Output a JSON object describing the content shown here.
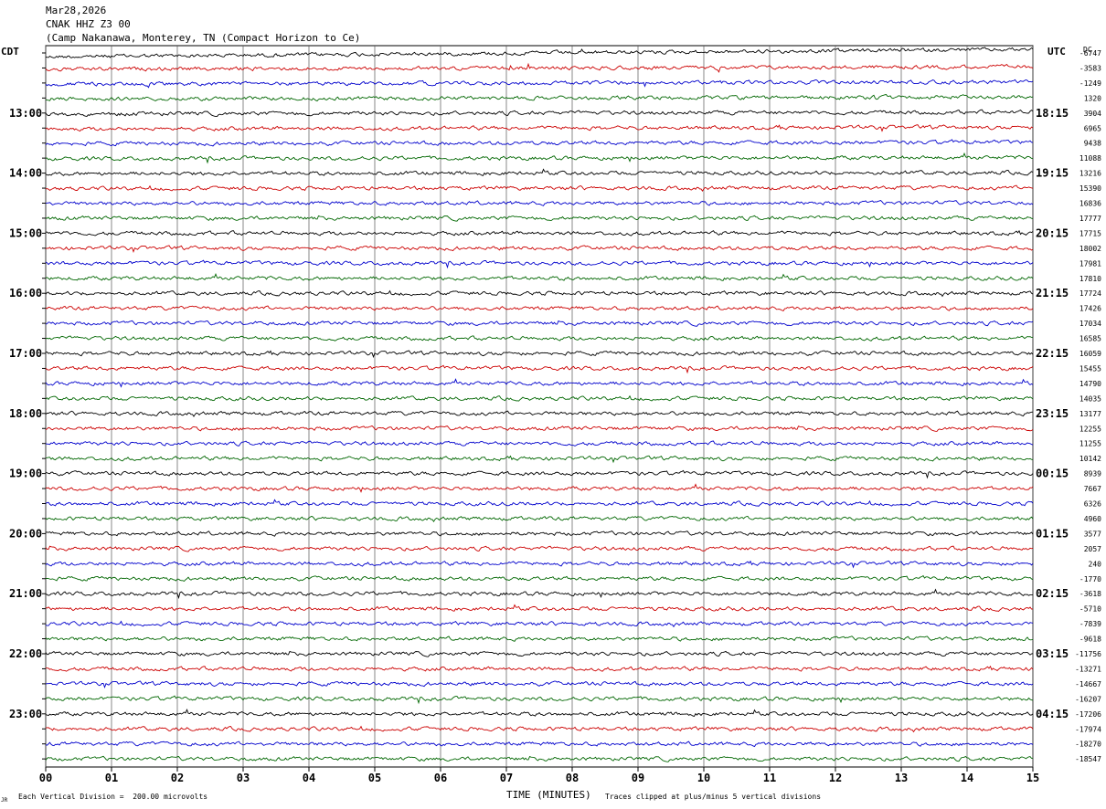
{
  "header": {
    "date": "Mar28,2026",
    "station": "CNAK HHZ Z3 00",
    "location": "(Camp Nakanawa, Monterey, TN (Compact Horizon to Ce)"
  },
  "left_zone": "CDT",
  "right_zone": "UTC",
  "dc_label": "DC",
  "footer": {
    "xlabel": "TIME (MINUTES)",
    "scale_note": "Each Vertical Division =  200.00 microvolts",
    "clip_note": "Traces clipped at plus/minus 5 vertical divisions",
    "corner_mark": "JR"
  },
  "colors": {
    "trace_cycle": [
      "#000000",
      "#cc0000",
      "#0000cc",
      "#006600"
    ],
    "grid": "#000000"
  },
  "chart_data": {
    "type": "line",
    "x_ticks": [
      "00",
      "01",
      "02",
      "03",
      "04",
      "05",
      "06",
      "07",
      "08",
      "09",
      "10",
      "11",
      "12",
      "13",
      "14",
      "15"
    ],
    "xlim": [
      0,
      15
    ],
    "left_time_labels": [
      "13:00",
      "14:00",
      "15:00",
      "16:00",
      "17:00",
      "18:00",
      "19:00",
      "20:00",
      "21:00",
      "22:00",
      "23:00"
    ],
    "right_time_labels": [
      "18:15",
      "19:15",
      "20:15",
      "21:15",
      "22:15",
      "23:15",
      "00:15",
      "01:15",
      "02:15",
      "03:15",
      "04:15"
    ],
    "dc_offsets": [
      -6747,
      -3583,
      -1249,
      1320,
      3904,
      6965,
      9438,
      11088,
      13216,
      15390,
      16836,
      17777,
      17715,
      18002,
      17981,
      17810,
      17724,
      17426,
      17034,
      16585,
      16059,
      15455,
      14790,
      14035,
      13177,
      12255,
      11255,
      10142,
      8939,
      7667,
      6326,
      4960,
      3577,
      2057,
      240,
      -1770,
      -3618,
      -5710,
      -7839,
      -9618,
      -11756,
      -13271,
      -14667,
      -16207,
      -17206,
      -17974,
      -18270,
      -18547
    ]
  }
}
